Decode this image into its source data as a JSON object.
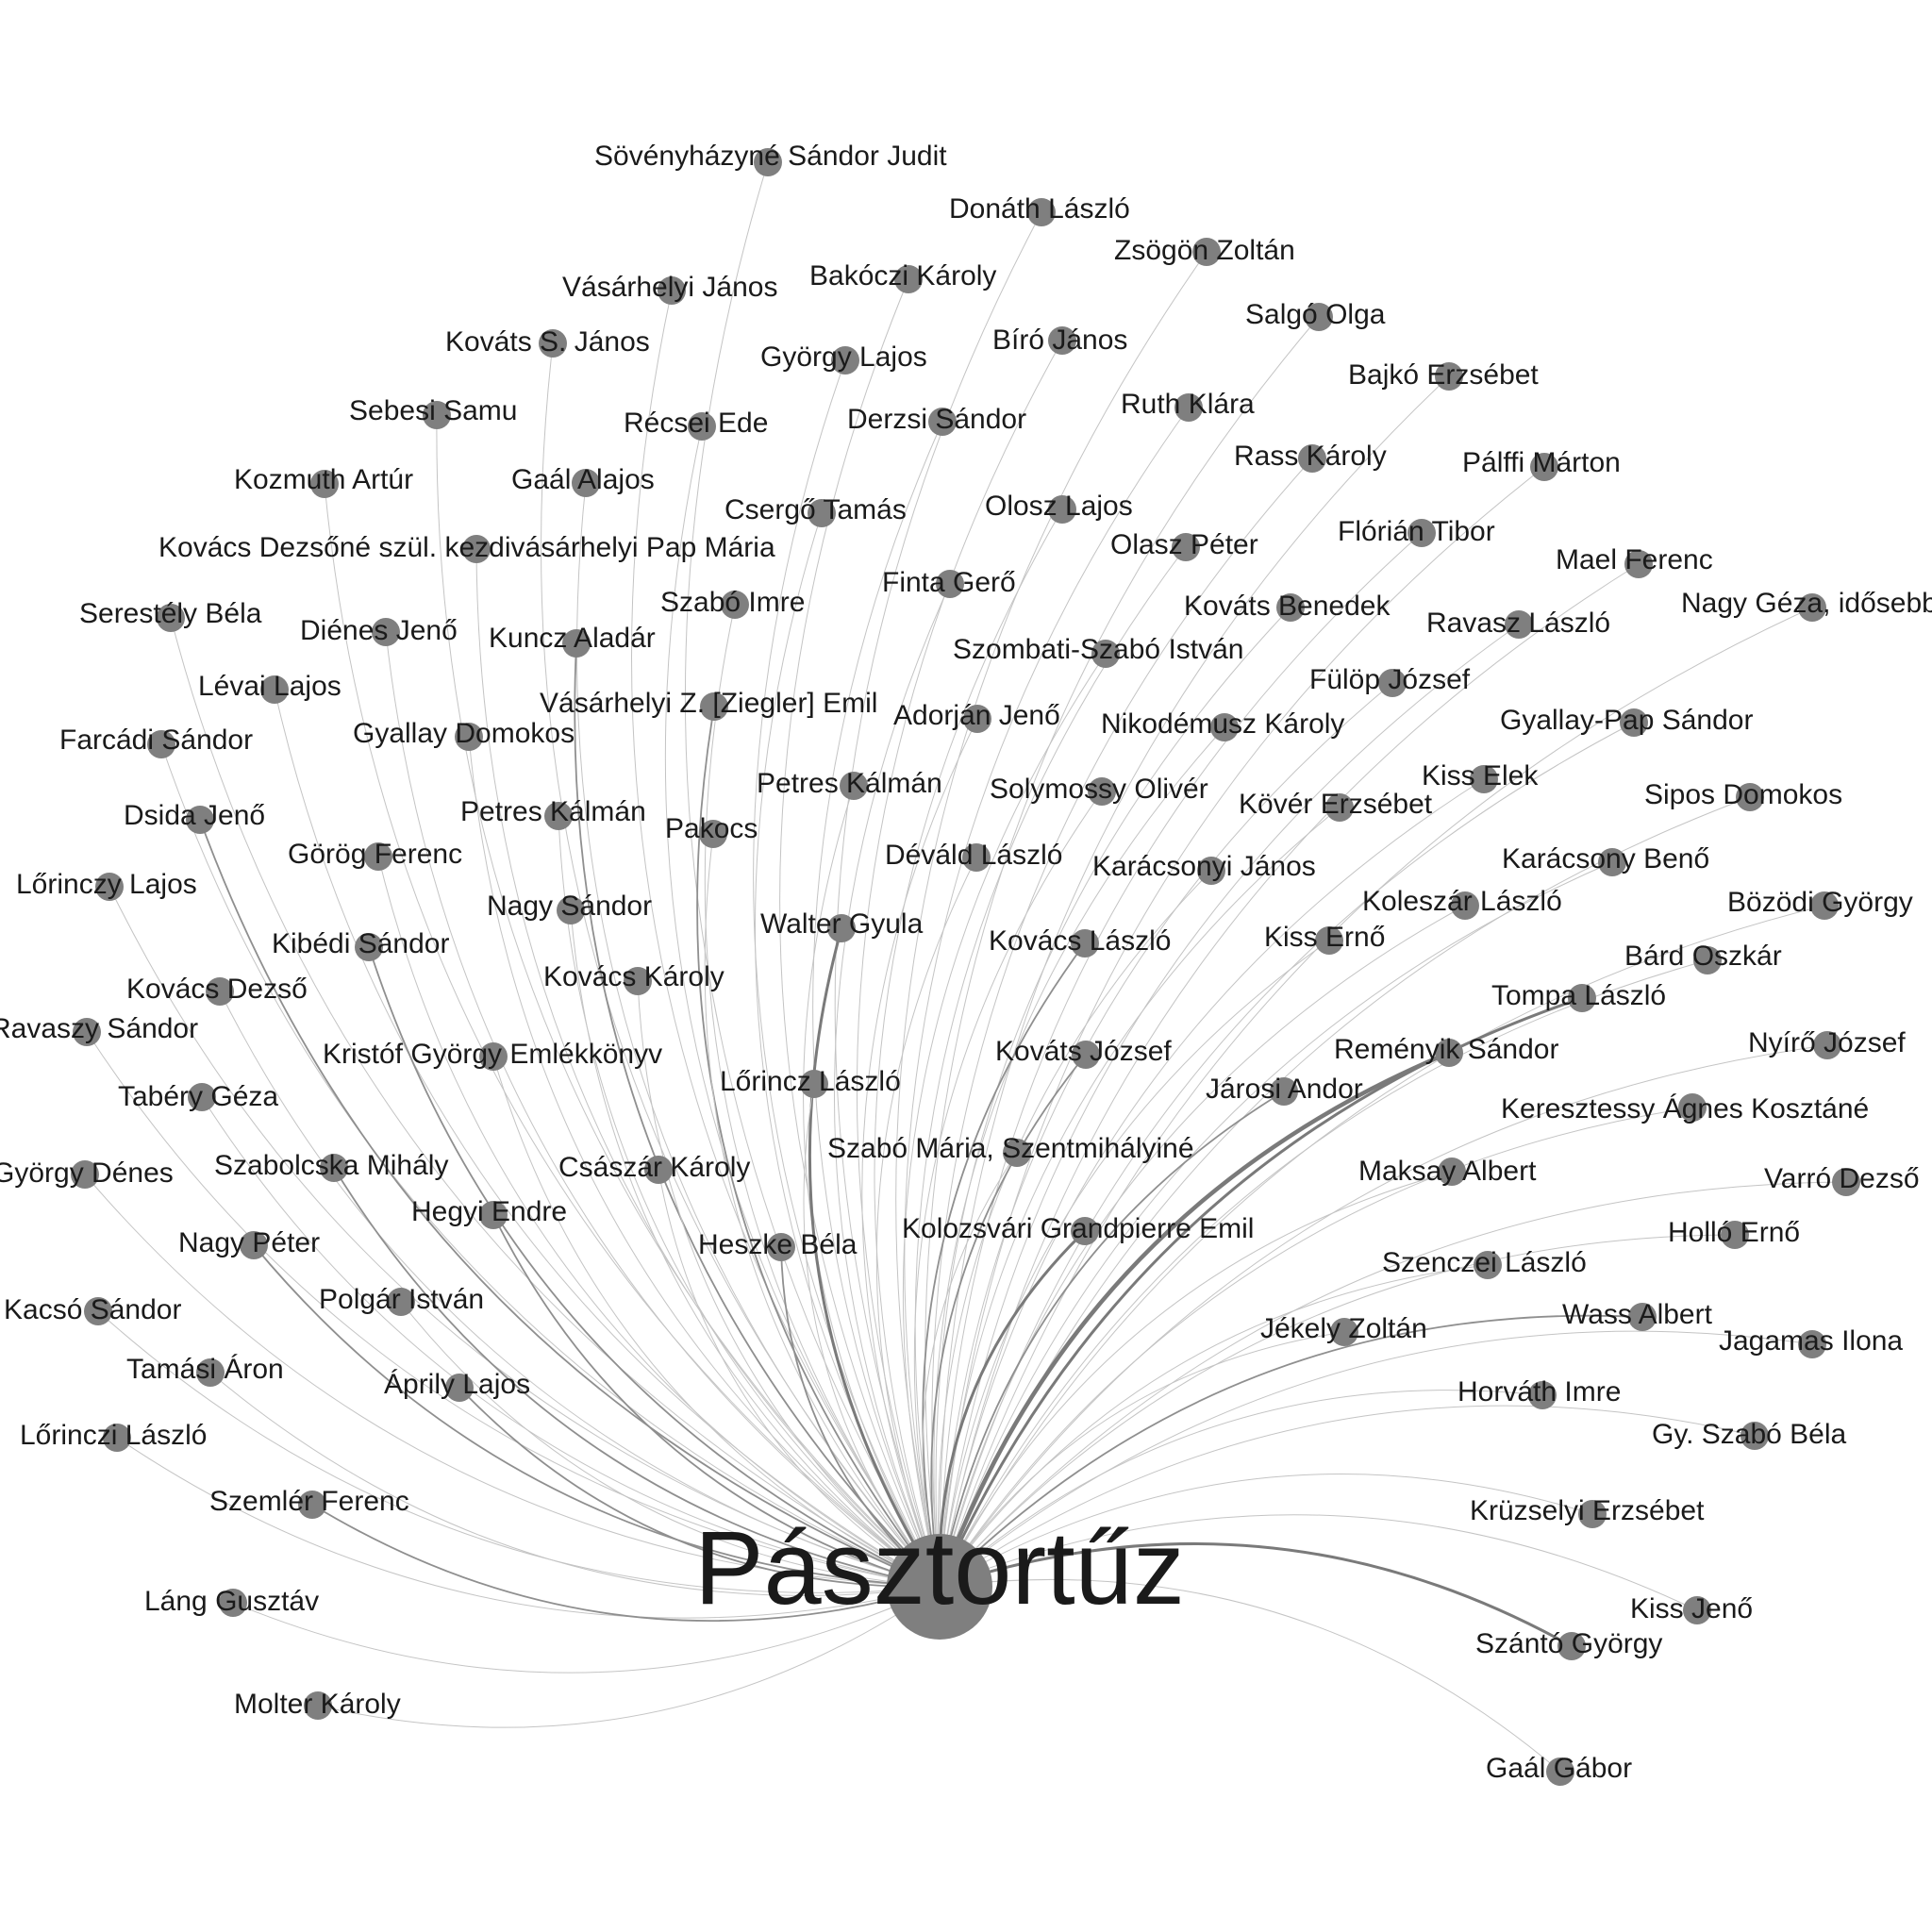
{
  "hub": {
    "name": "Pásztortűz"
  },
  "nodes": [
    {
      "name": "Sövényházyné Sándor Judit",
      "w": 1
    },
    {
      "name": "Donáth László",
      "w": 1
    },
    {
      "name": "Zsögön Zoltán",
      "w": 1
    },
    {
      "name": "Vásárhelyi János",
      "w": 1
    },
    {
      "name": "Bakóczi Károly",
      "w": 1
    },
    {
      "name": "Salgó Olga",
      "w": 1
    },
    {
      "name": "Kováts S. János",
      "w": 1
    },
    {
      "name": "György Lajos",
      "w": 1
    },
    {
      "name": "Bíró János",
      "w": 1
    },
    {
      "name": "Bajkó Erzsébet",
      "w": 1
    },
    {
      "name": "Sebesi Samu",
      "w": 1
    },
    {
      "name": "Récsei Ede",
      "w": 1
    },
    {
      "name": "Derzsi Sándor",
      "w": 1
    },
    {
      "name": "Ruth Klára",
      "w": 1
    },
    {
      "name": "Rass Károly",
      "w": 1
    },
    {
      "name": "Pálffi Márton",
      "w": 1
    },
    {
      "name": "Kozmuth Artúr",
      "w": 1
    },
    {
      "name": "Gaál Alajos",
      "w": 1
    },
    {
      "name": "Csergő Tamás",
      "w": 1
    },
    {
      "name": "Olosz Lajos",
      "w": 1
    },
    {
      "name": "Olasz Péter",
      "w": 1
    },
    {
      "name": "Flórián Tibor",
      "w": 1
    },
    {
      "name": "Kovács Dezsőné szül. kezdivásárhelyi Pap Mária",
      "w": 1
    },
    {
      "name": "Mael Ferenc",
      "w": 1
    },
    {
      "name": "Finta Gerő",
      "w": 1
    },
    {
      "name": "Szabó Imre",
      "w": 1
    },
    {
      "name": "Kováts Benedek",
      "w": 1
    },
    {
      "name": "Serestély Béla",
      "w": 1
    },
    {
      "name": "Nagy Géza, idősebb",
      "w": 1
    },
    {
      "name": "Diénes Jenő",
      "w": 1
    },
    {
      "name": "Kuncz Aladár",
      "w": 2
    },
    {
      "name": "Ravasz László",
      "w": 1
    },
    {
      "name": "Szombati-Szabó István",
      "w": 1
    },
    {
      "name": "Fülöp József",
      "w": 1
    },
    {
      "name": "Lévai Lajos",
      "w": 1
    },
    {
      "name": "Vásárhelyi Z. [Ziegler] Emil",
      "w": 2
    },
    {
      "name": "Adorján Jenő",
      "w": 1
    },
    {
      "name": "Nikodémusz Károly",
      "w": 1
    },
    {
      "name": "Gyallay-Pap Sándor",
      "w": 1
    },
    {
      "name": "Farcádi Sándor",
      "w": 1
    },
    {
      "name": "Gyallay Domokos",
      "w": 1
    },
    {
      "name": "Petres Kálmán",
      "w": 1
    },
    {
      "name": "Solymossy Olivér",
      "w": 1
    },
    {
      "name": "Kiss Elek",
      "w": 1
    },
    {
      "name": "Sipos Domokos",
      "w": 1
    },
    {
      "name": "Dsida Jenő",
      "w": 2
    },
    {
      "name": "Petres Kálmán",
      "w": 1
    },
    {
      "name": "Pakocs",
      "w": 1
    },
    {
      "name": "Kövér Erzsébet",
      "w": 1
    },
    {
      "name": "Görög Ferenc",
      "w": 1
    },
    {
      "name": "Déváld László",
      "w": 1
    },
    {
      "name": "Karácsonyi János",
      "w": 1
    },
    {
      "name": "Karácsony Benő",
      "w": 1
    },
    {
      "name": "Lőrinczy Lajos",
      "w": 1
    },
    {
      "name": "Nagy Sándor",
      "w": 1
    },
    {
      "name": "Koleszár László",
      "w": 1
    },
    {
      "name": "Bözödi György",
      "w": 1
    },
    {
      "name": "Walter Gyula",
      "w": 3
    },
    {
      "name": "Kibédi Sándor",
      "w": 2
    },
    {
      "name": "Kovács László",
      "w": 2
    },
    {
      "name": "Kiss Ernő",
      "w": 1
    },
    {
      "name": "Bárd Oszkár",
      "w": 1
    },
    {
      "name": "Kovács Károly",
      "w": 1
    },
    {
      "name": "Kovács Dezső",
      "w": 1
    },
    {
      "name": "Tompa László",
      "w": 3
    },
    {
      "name": "Ravaszy Sándor",
      "w": 1
    },
    {
      "name": "Nyírő József",
      "w": 1
    },
    {
      "name": "Kristóf György Emlékkönyv",
      "w": 1
    },
    {
      "name": "Kováts József",
      "w": 2
    },
    {
      "name": "Reményik Sándor",
      "w": 4
    },
    {
      "name": "Lőrincz László",
      "w": 1
    },
    {
      "name": "Járosi Andor",
      "w": 2
    },
    {
      "name": "Tabéry Géza",
      "w": 1
    },
    {
      "name": "Keresztessy Ágnes Kosztáné",
      "w": 1
    },
    {
      "name": "Szabó Mária, Szentmihályiné",
      "w": 1
    },
    {
      "name": "Szabolcska Mihály",
      "w": 2
    },
    {
      "name": "György Dénes",
      "w": 1
    },
    {
      "name": "Császár Károly",
      "w": 1
    },
    {
      "name": "Maksay Albert",
      "w": 1
    },
    {
      "name": "Varró Dezső",
      "w": 1
    },
    {
      "name": "Hegyi Endre",
      "w": 2
    },
    {
      "name": "Kolozsvári Grandpierre Emil",
      "w": 3
    },
    {
      "name": "Nagy Péter",
      "w": 2
    },
    {
      "name": "Heszke Béla",
      "w": 2
    },
    {
      "name": "Holló Ernő",
      "w": 1
    },
    {
      "name": "Szenczei László",
      "w": 1
    },
    {
      "name": "Polgár István",
      "w": 1
    },
    {
      "name": "Kacsó Sándor",
      "w": 1
    },
    {
      "name": "Wass Albert",
      "w": 2
    },
    {
      "name": "Jékely Zoltán",
      "w": 1
    },
    {
      "name": "Jagamas Ilona",
      "w": 1
    },
    {
      "name": "Tamási Áron",
      "w": 1
    },
    {
      "name": "Áprily Lajos",
      "w": 2
    },
    {
      "name": "Horváth Imre",
      "w": 1
    },
    {
      "name": "Lőrinczi László",
      "w": 1
    },
    {
      "name": "Gy. Szabó Béla",
      "w": 1
    },
    {
      "name": "Szemlér Ferenc",
      "w": 2
    },
    {
      "name": "Krüzselyi Erzsébet",
      "w": 1
    },
    {
      "name": "Láng Gusztáv",
      "w": 1
    },
    {
      "name": "Kiss Jenő",
      "w": 1
    },
    {
      "name": "Szántó György",
      "w": 3
    },
    {
      "name": "Molter Károly",
      "w": 1
    },
    {
      "name": "Gaál Gábor",
      "w": 1
    }
  ]
}
